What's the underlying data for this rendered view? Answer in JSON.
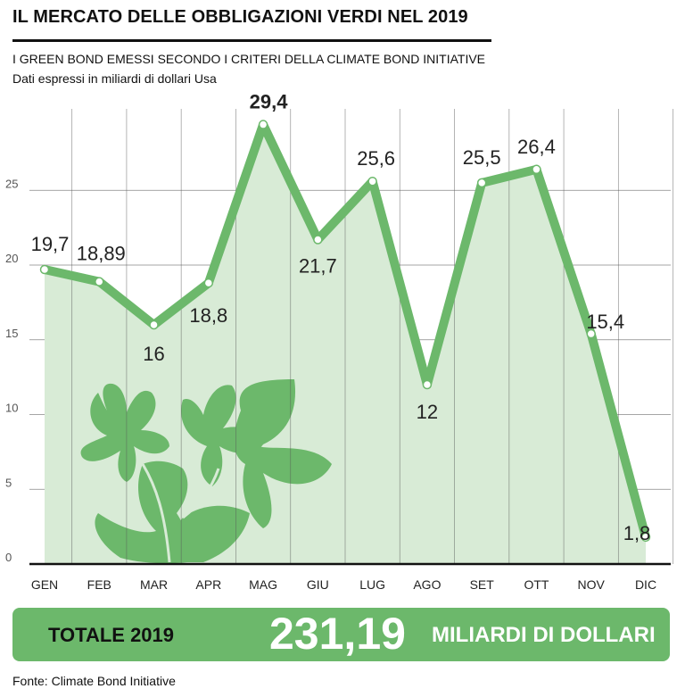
{
  "header": {
    "title": "IL MERCATO DELLE OBBLIGAZIONI VERDI NEL 2019",
    "subtitle": "I GREEN BOND EMESSI SECONDO I CRITERI DELLA CLIMATE BOND INITIATIVE",
    "unit_note": "Dati espressi in miliardi di dollari Usa"
  },
  "chart_data": {
    "type": "line",
    "title": "IL MERCATO DELLE OBBLIGAZIONI VERDI NEL 2019",
    "subtitle": "I GREEN BOND EMESSI SECONDO I CRITERI DELLA CLIMATE BOND INITIATIVE",
    "xlabel": "",
    "ylabel": "",
    "ylim": [
      0,
      30
    ],
    "yticks": [
      0,
      5,
      10,
      15,
      20,
      25
    ],
    "grid": true,
    "categories": [
      "GEN",
      "FEB",
      "MAR",
      "APR",
      "MAG",
      "GIU",
      "LUG",
      "AGO",
      "SET",
      "OTT",
      "NOV",
      "DIC"
    ],
    "series": [
      {
        "values": [
          19.7,
          18.89,
          16,
          18.8,
          29.4,
          21.7,
          25.6,
          12,
          25.5,
          26.4,
          15.4,
          1.8
        ],
        "data_labels": [
          "19,7",
          "18,89",
          "16",
          "18,8",
          "29,4",
          "21,7",
          "25,6",
          "12",
          "25,5",
          "26,4",
          "15,4",
          "1,8"
        ]
      }
    ],
    "line_color": "#6cb86b",
    "area_color": "#d8ebd6"
  },
  "total": {
    "label": "TOTALE 2019",
    "value": "231,19",
    "unit": "MILIARDI DI DOLLARI"
  },
  "source": "Fonte: Climate Bond Initiative",
  "colors": {
    "accent": "#6cb86b",
    "area": "#d8ebd6",
    "leaf": "#6cb86b"
  },
  "decoration": {
    "icon": "leaves-icon"
  }
}
